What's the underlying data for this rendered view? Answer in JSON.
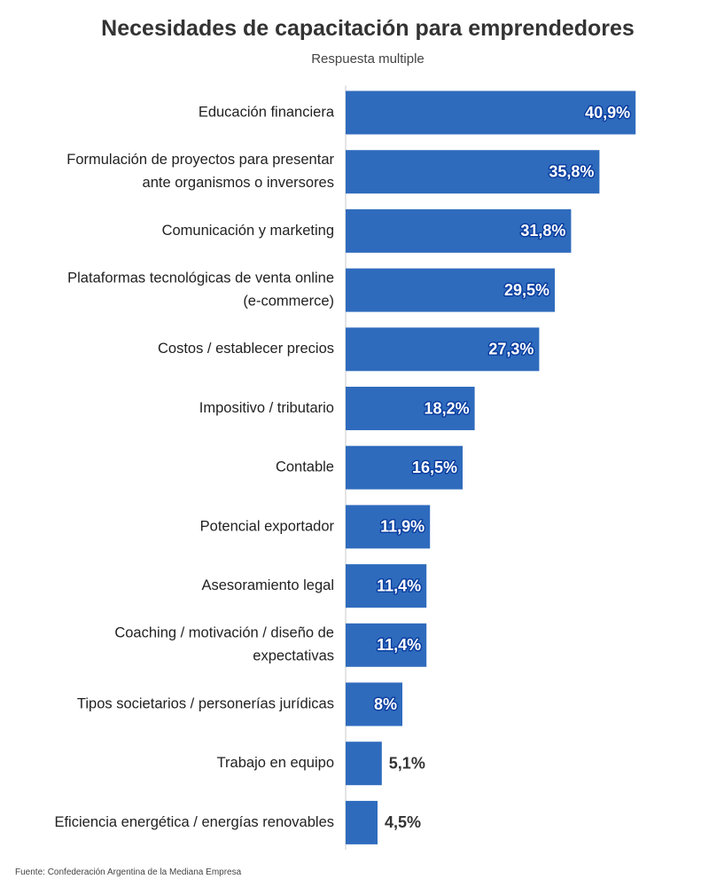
{
  "chart_data": {
    "type": "bar",
    "orientation": "horizontal",
    "title": "Necesidades de capacitación para emprendedores",
    "subtitle": "Respuesta multiple",
    "categories": [
      "Educación financiera",
      "Formulación de proyectos para presentar ante organismos o inversores",
      "Comunicación y marketing",
      "Plataformas tecnológicas de venta online (e-commerce)",
      "Costos / establecer precios",
      "Impositivo / tributario",
      "Contable",
      "Potencial exportador",
      "Asesoramiento legal",
      "Coaching / motivación / diseño de expectativas",
      "Tipos societarios / personerías jurídicas",
      "Trabajo en equipo",
      "Eficiencia energética / energías renovables"
    ],
    "category_lines": [
      [
        "Educación financiera"
      ],
      [
        "Formulación de proyectos para presentar",
        "ante organismos o inversores"
      ],
      [
        "Comunicación y marketing"
      ],
      [
        "Plataformas tecnológicas de venta online",
        "(e-commerce)"
      ],
      [
        "Costos / establecer precios"
      ],
      [
        "Impositivo / tributario"
      ],
      [
        "Contable"
      ],
      [
        "Potencial exportador"
      ],
      [
        "Asesoramiento legal"
      ],
      [
        "Coaching / motivación / diseño de",
        "expectativas"
      ],
      [
        "Tipos societarios / personerías jurídicas"
      ],
      [
        "Trabajo en equipo"
      ],
      [
        "Eficiencia energética / energías renovables"
      ]
    ],
    "values": [
      40.9,
      35.8,
      31.8,
      29.5,
      27.3,
      18.2,
      16.5,
      11.9,
      11.4,
      11.4,
      8,
      5.1,
      4.5
    ],
    "value_labels": [
      "40,9%",
      "35,8%",
      "31,8%",
      "29,5%",
      "27,3%",
      "18,2%",
      "16,5%",
      "11,9%",
      "11,4%",
      "11,4%",
      "8%",
      "5,1%",
      "4,5%"
    ],
    "xlim": [
      0,
      45
    ],
    "bar_color": "#2f6bbd",
    "label_outline_color": "#0b3fa0",
    "grid": false,
    "legend": "none"
  },
  "source": "Fuente: Confederación Argentina de la Mediana Empresa"
}
